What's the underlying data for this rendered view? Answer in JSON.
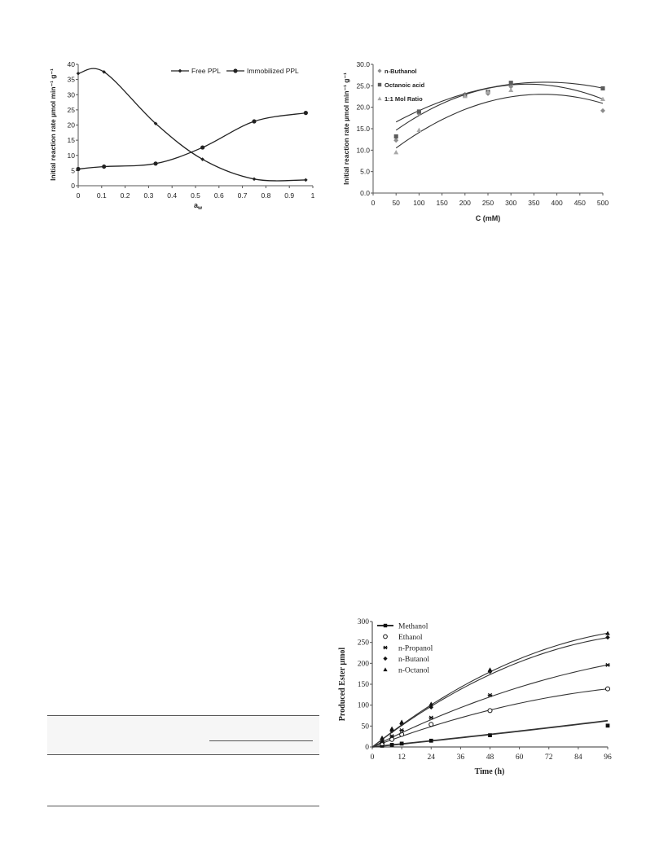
{
  "chart_data": [
    {
      "type": "line",
      "title": "",
      "xlabel": "a",
      "xlabel_sub": "w",
      "ylabel": "Initial reaction rate µmol min⁻¹ g⁻¹",
      "xlim": [
        0,
        1
      ],
      "ylim": [
        0,
        40
      ],
      "xticks": [
        "0",
        "0.1",
        "0.2",
        "0.3",
        "0.4",
        "0.5",
        "0.6",
        "0.7",
        "0.8",
        "0.9",
        "1"
      ],
      "yticks": [
        "0",
        "5",
        "10",
        "15",
        "20",
        "25",
        "30",
        "35",
        "40"
      ],
      "legend": "top-right",
      "grid": false,
      "series": [
        {
          "name": "Free PPL",
          "marker": "diamond",
          "color": "#222222",
          "x": [
            0.0,
            0.11,
            0.33,
            0.53,
            0.75,
            0.97
          ],
          "y": [
            37.0,
            37.5,
            20.5,
            8.7,
            2.2,
            1.9
          ]
        },
        {
          "name": "Immobilized PPL",
          "marker": "circle",
          "color": "#222222",
          "x": [
            0.0,
            0.11,
            0.33,
            0.53,
            0.75,
            0.97
          ],
          "y": [
            5.5,
            6.3,
            7.3,
            12.6,
            21.2,
            24.0
          ]
        }
      ]
    },
    {
      "type": "scatter",
      "title": "",
      "xlabel": "C (mM)",
      "ylabel": "Initial reaction rate µmol min⁻¹ g⁻¹",
      "xlim": [
        0,
        500
      ],
      "ylim": [
        0,
        30
      ],
      "xticks": [
        "0",
        "50",
        "100",
        "150",
        "200",
        "250",
        "300",
        "350",
        "400",
        "450",
        "500"
      ],
      "yticks": [
        "0.0",
        "5.0",
        "10.0",
        "15.0",
        "20.0",
        "25.0",
        "30.0"
      ],
      "legend": "top-left",
      "grid": false,
      "series": [
        {
          "name": "n-Buthanol",
          "marker": "diamond",
          "color": "#8c8c8c",
          "x": [
            50,
            100,
            200,
            250,
            300,
            500
          ],
          "y": [
            12.3,
            18.5,
            23.0,
            23.2,
            24.8,
            19.2
          ],
          "trend": [
            -0.0001304,
            0.0878,
            10.6
          ]
        },
        {
          "name": "Octanoic acid",
          "marker": "square",
          "color": "#5c5c5c",
          "x": [
            50,
            100,
            200,
            250,
            300,
            500
          ],
          "y": [
            13.2,
            19.0,
            22.8,
            23.6,
            25.7,
            24.4
          ],
          "trend": [
            -8.8e-05,
            0.0659,
            13.5
          ]
        },
        {
          "name": "1:1 Mol Ratio",
          "marker": "triangle",
          "color": "#a8a8a8",
          "x": [
            50,
            100,
            200,
            250,
            300,
            500
          ],
          "y": [
            9.5,
            14.7,
            22.6,
            23.6,
            24.0,
            21.9
          ],
          "trend": [
            -0.000123,
            0.0908,
            6.26
          ]
        }
      ]
    },
    {
      "type": "line",
      "title": "",
      "xlabel": "Time (h)",
      "ylabel": "Produced Ester µmol",
      "xlim": [
        0,
        96
      ],
      "ylim": [
        0,
        300
      ],
      "xticks": [
        "0",
        "12",
        "24",
        "36",
        "48",
        "60",
        "72",
        "84",
        "96"
      ],
      "yticks": [
        "0",
        "50",
        "100",
        "150",
        "200",
        "250",
        "300"
      ],
      "legend": "top-left",
      "grid": false,
      "series": [
        {
          "name": "Methanol",
          "marker": "square",
          "color": "#111111",
          "x": [
            4,
            8,
            12,
            24,
            48,
            96
          ],
          "y": [
            3,
            5,
            8,
            15,
            28,
            51
          ],
          "fit": [
            0.000625,
            0.594,
            0
          ]
        },
        {
          "name": "Ethanol",
          "marker": "circle-open",
          "color": "#111111",
          "x": [
            4,
            8,
            12,
            24,
            48,
            96
          ],
          "y": [
            8,
            18,
            30,
            54,
            87,
            139
          ],
          "fit": [
            -0.00815,
            2.23,
            0
          ]
        },
        {
          "name": "n-Propanol",
          "marker": "star",
          "color": "#111111",
          "x": [
            4,
            8,
            12,
            24,
            48,
            96
          ],
          "y": [
            12,
            26,
            40,
            70,
            124,
            196
          ],
          "fit": [
            -0.00944,
            2.95,
            0
          ]
        },
        {
          "name": "n-Butanol",
          "marker": "diamond",
          "color": "#111111",
          "x": [
            4,
            8,
            12,
            24,
            48,
            96
          ],
          "y": [
            18,
            38,
            55,
            95,
            180,
            262
          ],
          "fit": [
            -0.0184,
            4.49,
            0
          ]
        },
        {
          "name": "n-Octanol",
          "marker": "triangle",
          "color": "#111111",
          "x": [
            4,
            8,
            12,
            24,
            48,
            96
          ],
          "y": [
            22,
            44,
            60,
            103,
            185,
            272
          ],
          "fit": [
            -0.0188,
            4.64,
            0
          ]
        }
      ]
    }
  ]
}
